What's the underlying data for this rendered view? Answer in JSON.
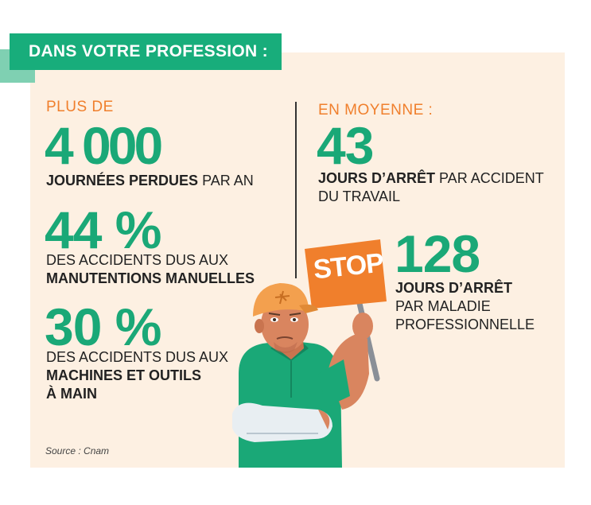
{
  "banner": {
    "title": "DANS VOTRE PROFESSION :"
  },
  "left": {
    "kicker": "PLUS DE",
    "stat1": {
      "value": "4 000",
      "bold": "JOURNÉES PERDUES",
      "rest": " PAR AN"
    },
    "stat2": {
      "value": "44 %",
      "line1": "DES ACCIDENTS DUS AUX",
      "bold": "MANUTENTIONS MANUELLES"
    },
    "stat3": {
      "value": "30 %",
      "line1": "DES ACCIDENTS DUS AUX",
      "bold1": "MACHINES ET OUTILS",
      "bold2": "À MAIN"
    }
  },
  "right": {
    "kicker": "EN MOYENNE :",
    "stat1": {
      "value": "43",
      "bold": "JOURS D’ARRÊT",
      "rest": " PAR ACCIDENT",
      "line2": "DU TRAVAIL"
    },
    "stat2": {
      "value": "128",
      "bold": "JOURS D’ARRÊT",
      "line2": "PAR MALADIE",
      "line3": "PROFESSIONNELLE"
    }
  },
  "sign": {
    "text": "STOP"
  },
  "source": "Source : Cnam",
  "colors": {
    "green": "#1aa877",
    "banner_green": "#18ad7b",
    "orange": "#f07f2c",
    "panel": "#fdf0e2",
    "skin": "#d9855f"
  },
  "illustration": {
    "name": "injured-worker-holding-stop-sign"
  }
}
